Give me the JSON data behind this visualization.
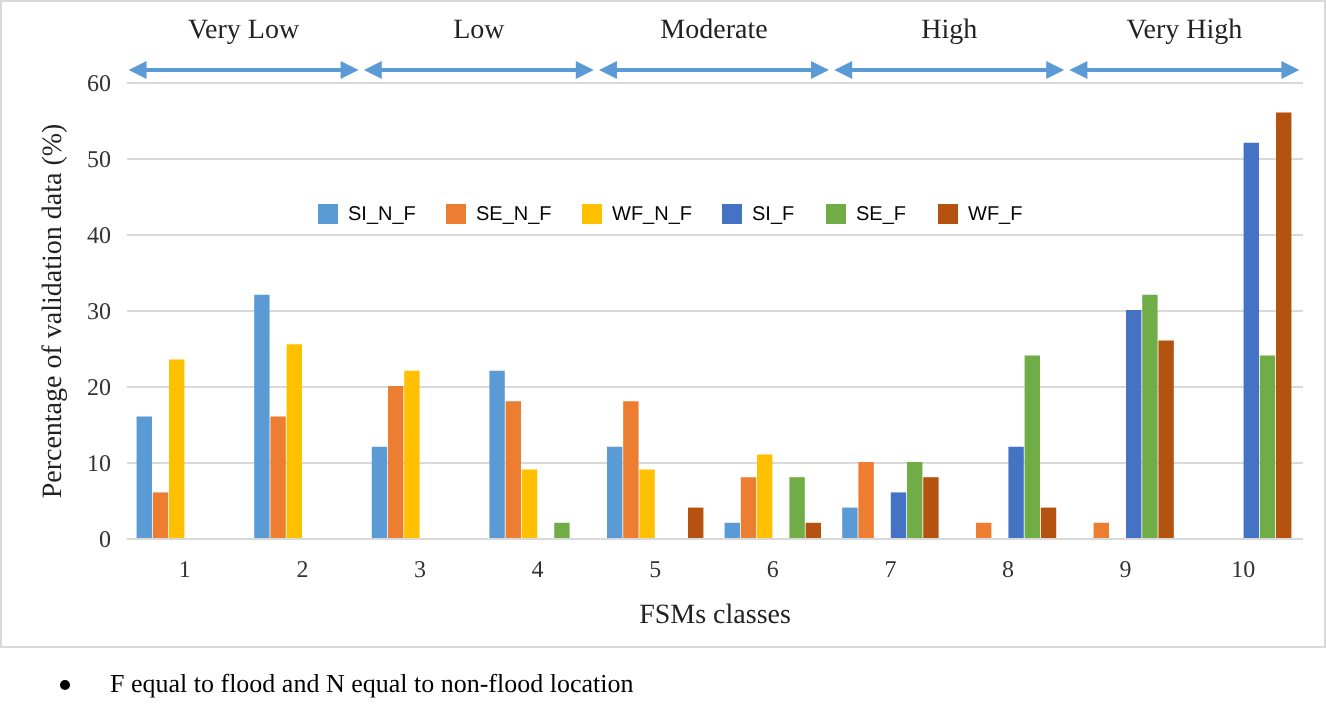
{
  "chart_data": {
    "type": "bar",
    "xlabel": "FSMs classes",
    "ylabel": "Percentage of validation data (%)",
    "categories": [
      "1",
      "2",
      "3",
      "4",
      "5",
      "6",
      "7",
      "8",
      "9",
      "10"
    ],
    "series": [
      {
        "name": "SI_N_F",
        "color": "#5b9bd5",
        "values": [
          16,
          32,
          12,
          22,
          12,
          2,
          4,
          0,
          0,
          0
        ]
      },
      {
        "name": "SE_N_F",
        "color": "#ed7d31",
        "values": [
          6,
          16,
          20,
          18,
          18,
          8,
          10,
          2,
          2,
          0
        ]
      },
      {
        "name": "WF_N_F",
        "color": "#ffc000",
        "values": [
          23.5,
          25.5,
          22,
          9,
          9,
          11,
          0,
          0,
          0,
          0
        ]
      },
      {
        "name": "SI_F",
        "color": "#4472c4",
        "values": [
          0,
          0,
          0,
          0,
          0,
          0,
          6,
          12,
          30,
          52
        ]
      },
      {
        "name": "SE_F",
        "color": "#70ad47",
        "values": [
          0,
          0,
          0,
          2,
          0,
          8,
          10,
          24,
          32,
          24
        ]
      },
      {
        "name": "WF_F",
        "color": "#b5520f",
        "values": [
          0,
          0,
          0,
          0,
          4,
          2,
          8,
          4,
          26,
          56
        ]
      }
    ],
    "ylim": [
      0,
      60
    ],
    "yticks": [
      0,
      10,
      20,
      30,
      40,
      50,
      60
    ],
    "grid": "y",
    "legend": "top",
    "annotations": [
      "Very Low",
      "Low",
      "Moderate",
      "High",
      "Very High",
      "F equal to flood and N equal to non-flood location"
    ]
  }
}
